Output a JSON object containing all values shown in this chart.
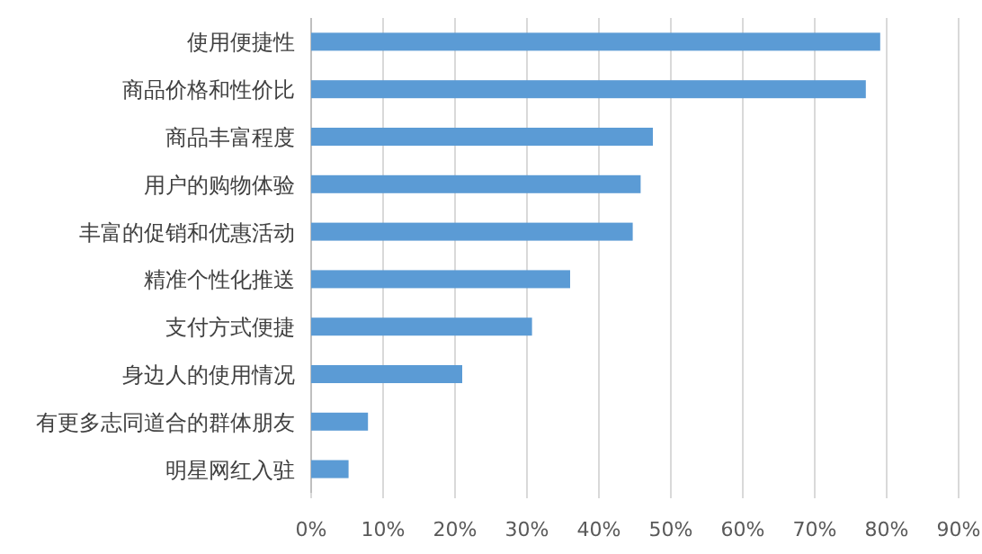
{
  "chart_data": {
    "type": "bar",
    "orientation": "horizontal",
    "categories": [
      "使用便捷性",
      "商品价格和性价比",
      "商品丰富程度",
      "用户的购物体验",
      "丰富的促销和优惠活动",
      "精准个性化推送",
      "支付方式便捷",
      "身边人的使用情况",
      "有更多志同道合的群体朋友",
      "明星网红入驻"
    ],
    "values": [
      79.1,
      77.1,
      47.5,
      45.8,
      44.7,
      36.0,
      30.7,
      21.0,
      7.9,
      5.2
    ],
    "color": "#5b9bd5",
    "xlim": [
      0,
      90
    ],
    "xticks": [
      {
        "value": 0,
        "label": "0%"
      },
      {
        "value": 10,
        "label": "10%"
      },
      {
        "value": 20,
        "label": "20%"
      },
      {
        "value": 30,
        "label": "30%"
      },
      {
        "value": 40,
        "label": "40%"
      },
      {
        "value": 50,
        "label": "50%"
      },
      {
        "value": 60,
        "label": "60%"
      },
      {
        "value": 70,
        "label": "70%"
      },
      {
        "value": 80,
        "label": "80%"
      },
      {
        "value": 90,
        "label": "90%"
      }
    ],
    "grid": "x"
  }
}
